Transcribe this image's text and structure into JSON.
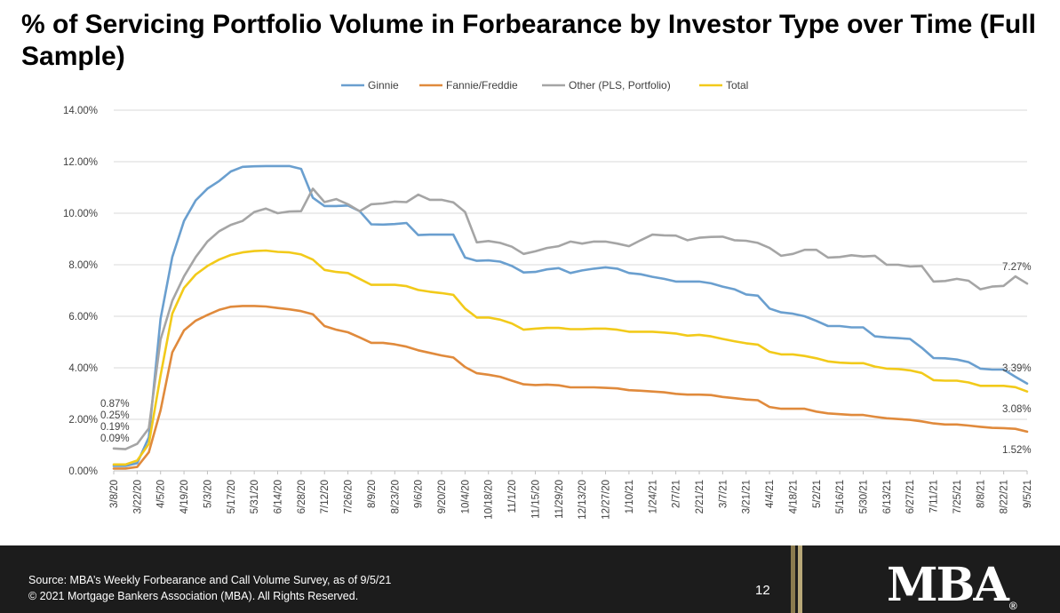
{
  "title": "% of Servicing Portfolio Volume in Forbearance by Investor Type over Time (Full Sample)",
  "footer": {
    "source": "Source: MBA’s Weekly Forbearance and Call Volume Survey, as of 9/5/21",
    "copyright": "© 2021 Mortgage Bankers Association (MBA). All Rights Reserved.",
    "page": "12",
    "logo": "MBA",
    "logo_mark": "®"
  },
  "chart_data": {
    "type": "line",
    "title": "% of Servicing Portfolio Volume in Forbearance by Investor Type over Time (Full Sample)",
    "legend_position": "top",
    "grid": "horizontal",
    "ylim": [
      0,
      14
    ],
    "yticks": [
      "0.00%",
      "2.00%",
      "4.00%",
      "6.00%",
      "8.00%",
      "10.00%",
      "12.00%",
      "14.00%"
    ],
    "x": [
      "3/8/20",
      "3/15/20",
      "3/22/20",
      "3/29/20",
      "4/5/20",
      "4/12/20",
      "4/19/20",
      "4/26/20",
      "5/3/20",
      "5/10/20",
      "5/17/20",
      "5/24/20",
      "5/31/20",
      "6/7/20",
      "6/14/20",
      "6/21/20",
      "6/28/20",
      "7/5/20",
      "7/12/20",
      "7/19/20",
      "7/26/20",
      "8/2/20",
      "8/9/20",
      "8/16/20",
      "8/23/20",
      "8/30/20",
      "9/6/20",
      "9/13/20",
      "9/20/20",
      "9/27/20",
      "10/4/20",
      "10/11/20",
      "10/18/20",
      "10/25/20",
      "11/1/20",
      "11/8/20",
      "11/15/20",
      "11/22/20",
      "11/29/20",
      "12/6/20",
      "12/13/20",
      "12/20/20",
      "12/27/20",
      "1/3/21",
      "1/10/21",
      "1/17/21",
      "1/24/21",
      "1/31/21",
      "2/7/21",
      "2/14/21",
      "2/21/21",
      "2/28/21",
      "3/7/21",
      "3/14/21",
      "3/21/21",
      "3/28/21",
      "4/4/21",
      "4/11/21",
      "4/18/21",
      "4/25/21",
      "5/2/21",
      "5/9/21",
      "5/16/21",
      "5/23/21",
      "5/30/21",
      "6/6/21",
      "6/13/21",
      "6/20/21",
      "6/27/21",
      "7/4/21",
      "7/11/21",
      "7/18/21",
      "7/25/21",
      "8/1/21",
      "8/8/21",
      "8/15/21",
      "8/22/21",
      "8/29/21",
      "9/5/21"
    ],
    "xtick_labels": [
      "3/8/20",
      "3/22/20",
      "4/5/20",
      "4/19/20",
      "5/3/20",
      "5/17/20",
      "5/31/20",
      "6/14/20",
      "6/28/20",
      "7/12/20",
      "7/26/20",
      "8/9/20",
      "8/23/20",
      "9/6/20",
      "9/20/20",
      "10/4/20",
      "10/18/20",
      "11/1/20",
      "11/15/20",
      "11/29/20",
      "12/13/20",
      "12/27/20",
      "1/10/21",
      "1/24/21",
      "2/7/21",
      "2/21/21",
      "3/7/21",
      "3/21/21",
      "4/4/21",
      "4/18/21",
      "5/2/21",
      "5/16/21",
      "5/30/21",
      "6/13/21",
      "6/27/21",
      "7/11/21",
      "7/25/21",
      "8/8/21",
      "8/22/21",
      "9/5/21"
    ],
    "series": [
      {
        "name": "Ginnie",
        "color": "#6a9fcf",
        "values": [
          0.19,
          0.19,
          0.3,
          1.3,
          5.9,
          8.3,
          9.7,
          10.5,
          10.95,
          11.25,
          11.62,
          11.8,
          11.82,
          11.83,
          11.83,
          11.83,
          11.72,
          10.6,
          10.28,
          10.28,
          10.3,
          10.08,
          9.57,
          9.56,
          9.58,
          9.62,
          9.15,
          9.17,
          9.17,
          9.17,
          8.28,
          8.15,
          8.17,
          8.12,
          7.95,
          7.7,
          7.72,
          7.82,
          7.87,
          7.68,
          7.78,
          7.85,
          7.9,
          7.85,
          7.68,
          7.63,
          7.53,
          7.45,
          7.35,
          7.35,
          7.35,
          7.28,
          7.15,
          7.05,
          6.85,
          6.8,
          6.3,
          6.15,
          6.1,
          6.0,
          5.82,
          5.62,
          5.62,
          5.57,
          5.57,
          5.22,
          5.18,
          5.15,
          5.12,
          4.78,
          4.38,
          4.37,
          4.32,
          4.22,
          3.97,
          3.93,
          3.93,
          3.65,
          3.39
        ]
      },
      {
        "name": "Fannie/Freddie",
        "color": "#e08a3c",
        "values": [
          0.09,
          0.09,
          0.15,
          0.72,
          2.35,
          4.6,
          5.45,
          5.83,
          6.05,
          6.25,
          6.37,
          6.4,
          6.4,
          6.38,
          6.32,
          6.27,
          6.2,
          6.08,
          5.62,
          5.48,
          5.38,
          5.18,
          4.97,
          4.97,
          4.91,
          4.82,
          4.68,
          4.58,
          4.48,
          4.4,
          4.03,
          3.79,
          3.73,
          3.65,
          3.5,
          3.36,
          3.33,
          3.35,
          3.32,
          3.24,
          3.24,
          3.24,
          3.22,
          3.2,
          3.13,
          3.11,
          3.08,
          3.05,
          2.99,
          2.96,
          2.96,
          2.94,
          2.87,
          2.82,
          2.77,
          2.74,
          2.48,
          2.41,
          2.41,
          2.41,
          2.3,
          2.23,
          2.2,
          2.17,
          2.17,
          2.1,
          2.04,
          2.01,
          1.98,
          1.92,
          1.84,
          1.8,
          1.8,
          1.76,
          1.71,
          1.67,
          1.66,
          1.63,
          1.52
        ]
      },
      {
        "name": "Other (PLS, Portfolio)",
        "color": "#a5a5a5",
        "values": [
          0.87,
          0.84,
          1.05,
          1.65,
          5.1,
          6.6,
          7.55,
          8.3,
          8.9,
          9.3,
          9.55,
          9.7,
          10.05,
          10.18,
          10.0,
          10.07,
          10.08,
          10.95,
          10.43,
          10.55,
          10.35,
          10.08,
          10.35,
          10.38,
          10.45,
          10.43,
          10.72,
          10.52,
          10.52,
          10.42,
          10.05,
          8.87,
          8.92,
          8.85,
          8.7,
          8.42,
          8.52,
          8.65,
          8.72,
          8.9,
          8.82,
          8.9,
          8.9,
          8.82,
          8.72,
          8.95,
          9.17,
          9.14,
          9.13,
          8.95,
          9.05,
          9.08,
          9.09,
          8.95,
          8.93,
          8.85,
          8.65,
          8.35,
          8.42,
          8.58,
          8.58,
          8.28,
          8.3,
          8.37,
          8.32,
          8.35,
          8.0,
          8.0,
          7.93,
          7.95,
          7.35,
          7.37,
          7.45,
          7.38,
          7.05,
          7.15,
          7.18,
          7.55,
          7.27
        ]
      },
      {
        "name": "Total",
        "color": "#f2ca1a",
        "values": [
          0.25,
          0.25,
          0.4,
          1.05,
          3.7,
          6.1,
          7.1,
          7.62,
          7.95,
          8.2,
          8.38,
          8.48,
          8.53,
          8.55,
          8.5,
          8.48,
          8.4,
          8.2,
          7.8,
          7.72,
          7.68,
          7.45,
          7.22,
          7.22,
          7.22,
          7.17,
          7.02,
          6.95,
          6.9,
          6.83,
          6.3,
          5.95,
          5.95,
          5.87,
          5.72,
          5.48,
          5.52,
          5.55,
          5.55,
          5.5,
          5.5,
          5.52,
          5.52,
          5.48,
          5.4,
          5.4,
          5.4,
          5.37,
          5.33,
          5.25,
          5.28,
          5.22,
          5.12,
          5.03,
          4.95,
          4.9,
          4.62,
          4.52,
          4.52,
          4.46,
          4.37,
          4.25,
          4.2,
          4.18,
          4.18,
          4.05,
          3.97,
          3.95,
          3.9,
          3.8,
          3.52,
          3.5,
          3.5,
          3.43,
          3.3,
          3.3,
          3.3,
          3.25,
          3.08
        ]
      }
    ],
    "annotations": {
      "start": [
        "0.87%",
        "0.25%",
        "0.19%",
        "0.09%"
      ],
      "end": [
        "7.27%",
        "3.39%",
        "3.08%",
        "1.52%"
      ]
    }
  }
}
